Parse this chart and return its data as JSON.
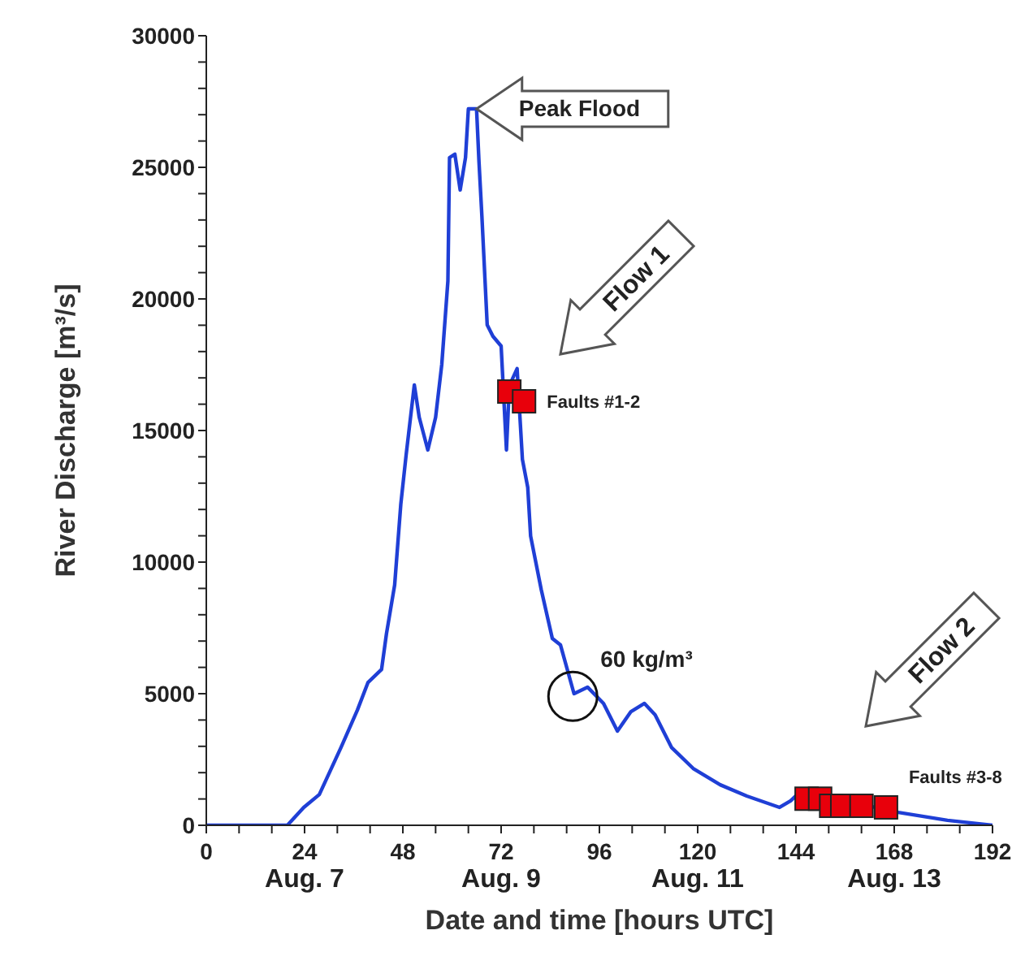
{
  "chart_data": {
    "type": "line",
    "xlabel": "Date and time [hours UTC]",
    "ylabel": "River Discharge  [m³/s]",
    "xlim": [
      0,
      192
    ],
    "ylim": [
      0,
      30000
    ],
    "xticks": [
      0,
      {
        "value": 8,
        "label": null
      },
      {
        "value": 16,
        "label": null
      },
      {
        "value": 24,
        "label": "24\nAug. 7"
      },
      {
        "value": 32,
        "label": null
      },
      {
        "value": 40,
        "label": null
      },
      48,
      {
        "value": 56,
        "label": null
      },
      {
        "value": 64,
        "label": null
      },
      {
        "value": 72,
        "label": "72\nAug. 9"
      },
      {
        "value": 80,
        "label": null
      },
      {
        "value": 88,
        "label": null
      },
      96,
      {
        "value": 104,
        "label": null
      },
      {
        "value": 112,
        "label": null
      },
      {
        "value": 120,
        "label": "120\nAug. 11"
      },
      {
        "value": 128,
        "label": null
      },
      {
        "value": 136,
        "label": null
      },
      144,
      {
        "value": 152,
        "label": null
      },
      {
        "value": 160,
        "label": null
      },
      {
        "value": 168,
        "label": "168\nAug. 13"
      },
      {
        "value": 176,
        "label": null
      },
      {
        "value": 184,
        "label": null
      },
      192
    ],
    "yticks": [
      0,
      {
        "value": 1000,
        "label": null
      },
      {
        "value": 2000,
        "label": null
      },
      {
        "value": 3000,
        "label": null
      },
      {
        "value": 4000,
        "label": null
      },
      5000,
      {
        "value": 6000,
        "label": null
      },
      {
        "value": 7000,
        "label": null
      },
      {
        "value": 8000,
        "label": null
      },
      {
        "value": 9000,
        "label": null
      },
      10000,
      {
        "value": 11000,
        "label": null
      },
      {
        "value": 12000,
        "label": null
      },
      {
        "value": 13000,
        "label": null
      },
      {
        "value": 14000,
        "label": null
      },
      15000,
      {
        "value": 16000,
        "label": null
      },
      {
        "value": 17000,
        "label": null
      },
      {
        "value": 18000,
        "label": null
      },
      {
        "value": 19000,
        "label": null
      },
      20000,
      {
        "value": 21000,
        "label": null
      },
      {
        "value": 22000,
        "label": null
      },
      {
        "value": 23000,
        "label": null
      },
      {
        "value": 24000,
        "label": null
      },
      25000,
      {
        "value": 26000,
        "label": null
      },
      {
        "value": 27000,
        "label": null
      },
      {
        "value": 28000,
        "label": null
      },
      {
        "value": 29000,
        "label": null
      },
      30000
    ],
    "grid": false,
    "legend": false,
    "series": [
      {
        "color": "#1f3fd6",
        "marker": "none",
        "line_style": "solid",
        "x": [
          0,
          18,
          19.8,
          23.8,
          27.6,
          32.9,
          36.9,
          39.5,
          42.8,
          44,
          46,
          47.5,
          48.8,
          50.8,
          52,
          54.1,
          56,
          57.5,
          59,
          59.4,
          60.7,
          62,
          63.3,
          64,
          66,
          66.6,
          67.3,
          68.6,
          70,
          72,
          73.3,
          74,
          75.9,
          77.2,
          78.5,
          79.2,
          81.8,
          84.5,
          86.5,
          89.8,
          93.1,
          97,
          100.4,
          103.7,
          107,
          109.6,
          113.6,
          118.9,
          125.5,
          132,
          140,
          142.7,
          145.2,
          169,
          181,
          192
        ],
        "values": [
          0,
          0,
          0,
          680,
          1170,
          2960,
          4380,
          5430,
          5920,
          7280,
          9130,
          12200,
          14070,
          16730,
          15500,
          14260,
          15500,
          17500,
          20680,
          25370,
          25500,
          24140,
          25370,
          27220,
          27220,
          25190,
          23150,
          19010,
          18580,
          18210,
          14260,
          16700,
          17350,
          13900,
          12840,
          10990,
          8950,
          7100,
          6850,
          5000,
          5250,
          4630,
          3580,
          4320,
          4630,
          4200,
          2960,
          2160,
          1540,
          1110,
          680,
          930,
          1300,
          490,
          190,
          0
        ]
      },
      {
        "type": "scatter",
        "color": "#e8000b",
        "marker": "square",
        "x": [
          74,
          77.6,
          146.6,
          149.9,
          152.6,
          155.3,
          160,
          166
        ],
        "values": [
          16480,
          16110,
          1010,
          1010,
          740,
          740,
          740,
          680
        ]
      }
    ],
    "annotations": [
      {
        "text": "Peak Flood",
        "x": 66,
        "y": 27220
      },
      "Flow 1",
      "Flow 2",
      {
        "text": "60 kg/m³",
        "x": 89.5,
        "y": 4900
      },
      {
        "text": "Faults #1-2",
        "x": 77.6,
        "y": 16110
      },
      {
        "text": "Faults #3-8",
        "x": 166,
        "y": 680
      }
    ]
  }
}
